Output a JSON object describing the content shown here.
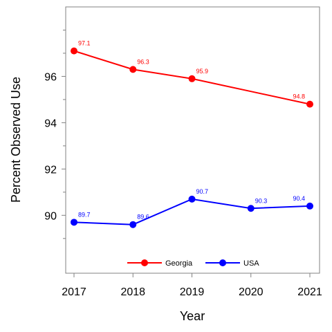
{
  "chart_data": {
    "type": "line",
    "xlabel": "Year",
    "ylabel": "Percent Observed Use",
    "x": [
      2017,
      2018,
      2019,
      2020,
      2021
    ],
    "x_tick_labels": [
      "2017",
      "2018",
      "2019",
      "2020",
      "2021"
    ],
    "xlim": [
      2017,
      2021
    ],
    "ylim": [
      87.5,
      99.0
    ],
    "y_ticks": [
      90,
      92,
      94,
      96
    ],
    "y_tick_labels": [
      "90",
      "92",
      "94",
      "96"
    ],
    "y_minor_ticks": [
      89,
      91,
      93,
      95,
      97,
      98
    ],
    "grid": false,
    "legend_position": "bottom-inside",
    "series": [
      {
        "name": "Georgia",
        "color": "#ff0000",
        "values": [
          97.1,
          96.3,
          95.9,
          95.35,
          94.8
        ],
        "labels": [
          "97.1",
          "96.3",
          "95.9",
          "",
          "94.8"
        ],
        "show_marker": [
          true,
          true,
          true,
          false,
          true
        ]
      },
      {
        "name": "USA",
        "color": "#0000ff",
        "values": [
          89.7,
          89.6,
          90.7,
          90.3,
          90.4
        ],
        "labels": [
          "89.7",
          "89.6",
          "90.7",
          "90.3",
          "90.4"
        ],
        "show_marker": [
          true,
          true,
          true,
          true,
          true
        ]
      }
    ]
  }
}
